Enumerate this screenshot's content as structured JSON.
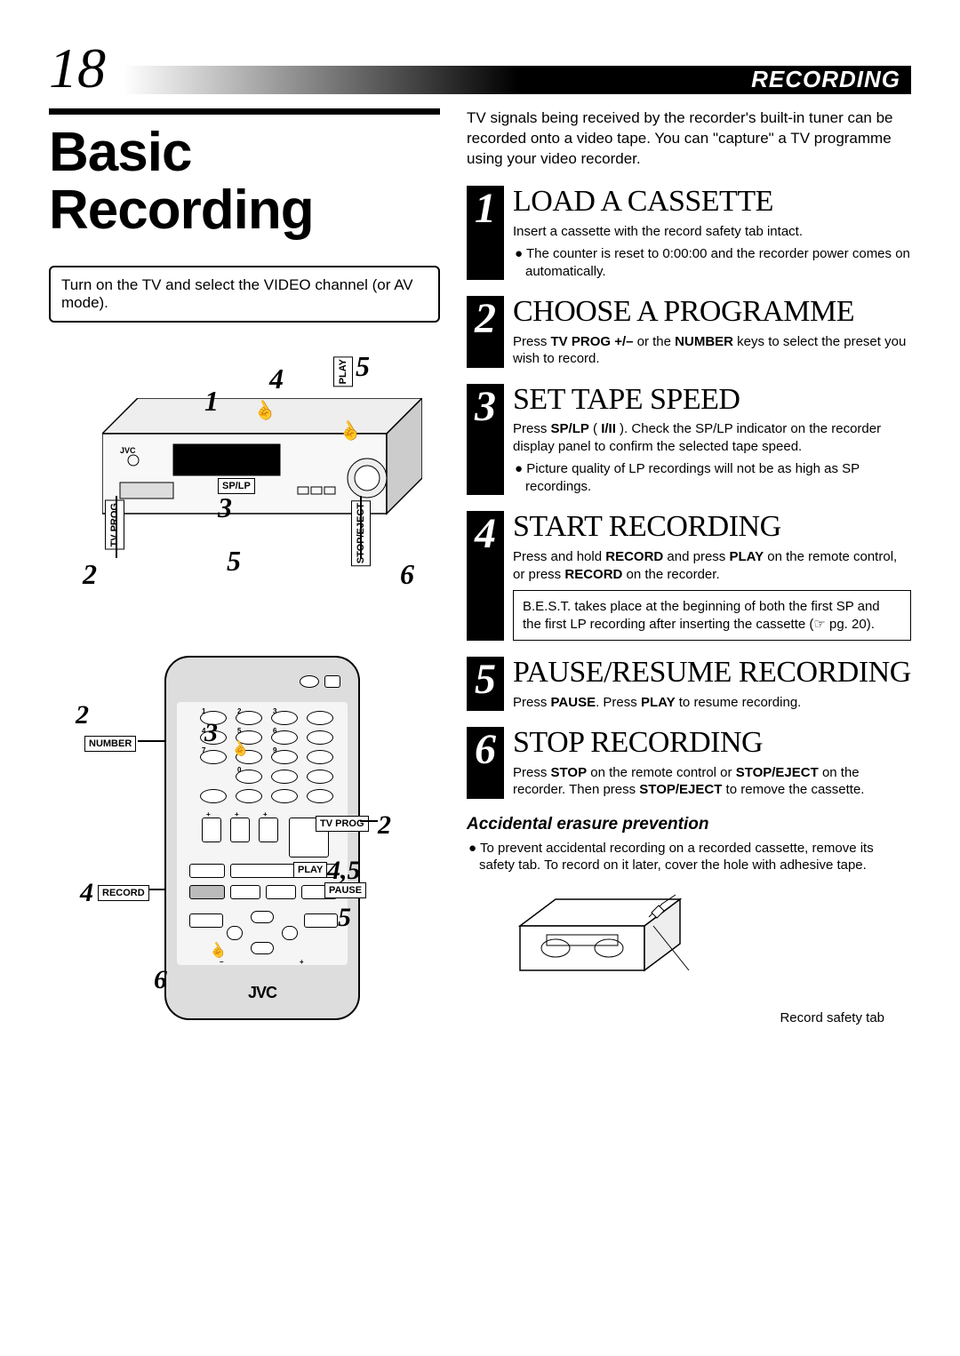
{
  "page_number": "18",
  "header_label": "RECORDING",
  "main_title": "Basic\nRecording",
  "instruction_box": "Turn on the TV and select the VIDEO channel (or AV mode).",
  "intro_text": "TV signals being received by the recorder's built-in tuner can be recorded onto a video tape. You can \"capture\" a TV programme using your video recorder.",
  "steps": [
    {
      "n": "1",
      "title": "LOAD A CASSETTE",
      "text": "Insert a cassette with the record safety tab intact.",
      "bullet": "The counter is reset to 0:00:00 and the recorder power comes on automatically."
    },
    {
      "n": "2",
      "title": "CHOOSE A PROGRAMME",
      "text": "Press <b>TV PROG +/–</b> or the <b>NUMBER</b> keys to select the preset you wish to record."
    },
    {
      "n": "3",
      "title": "SET TAPE SPEED",
      "text": "Press <b>SP/LP</b> ( <b>I/II</b> ). Check the SP/LP indicator on the recorder display panel to confirm the selected tape speed.",
      "bullet": "Picture quality of LP recordings will not be as high as SP recordings."
    },
    {
      "n": "4",
      "title": "START RECORDING",
      "text": "Press and hold <b>RECORD</b> and press <b>PLAY</b> on the remote control, or press <b>RECORD</b> on the recorder.",
      "note": "B.E.S.T. takes place at the beginning of both the first SP and the first LP recording after inserting the cassette (☞ pg. 20)."
    },
    {
      "n": "5",
      "title": "PAUSE/RESUME RECORDING",
      "text": "Press <b>PAUSE</b>. Press <b>PLAY</b> to resume recording."
    },
    {
      "n": "6",
      "title": "STOP RECORDING",
      "text": "Press <b>STOP</b> on the remote control or <b>STOP/EJECT</b> on the recorder. Then press <b>STOP/EJECT</b> to remove the cassette."
    }
  ],
  "erasure": {
    "heading": "Accidental erasure prevention",
    "text": "To prevent accidental recording on a recorded cassette, remove its safety tab. To record on it later, cover the hole with adhesive tape.",
    "tab_label": "Record safety tab"
  },
  "diagram_labels": {
    "tv_prog": "TV PROG",
    "sp_lp": "SP/LP",
    "play": "PLAY",
    "record": "RECORD",
    "pause": "PAUSE",
    "stop": "STOP",
    "stop_eject": "STOP/EJECT",
    "number": "NUMBER",
    "jvc": "JVC"
  },
  "diagram_callouts": {
    "vcr_1": "1",
    "vcr_2": "2",
    "vcr_3": "3",
    "vcr_4": "4",
    "vcr_5a": "5",
    "vcr_5b": "5",
    "vcr_6": "6",
    "rem_2a": "2",
    "rem_2b": "2",
    "rem_3": "3",
    "rem_4": "4",
    "rem_45": "4,5",
    "rem_5": "5",
    "rem_6": "6"
  }
}
